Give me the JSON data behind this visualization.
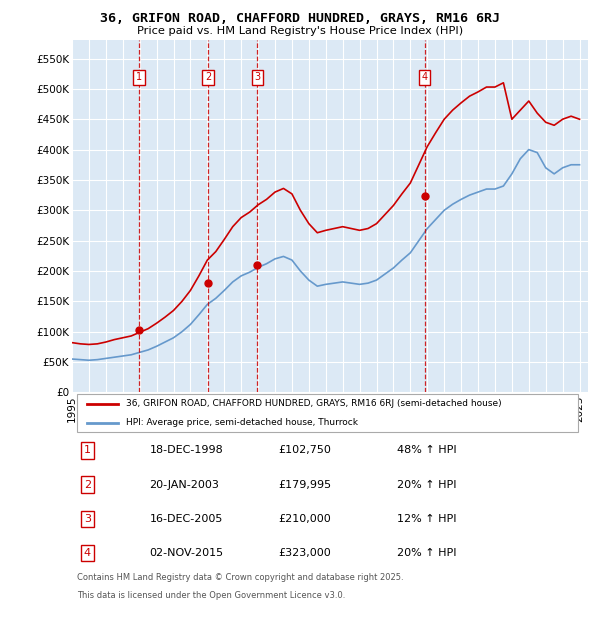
{
  "title": "36, GRIFON ROAD, CHAFFORD HUNDRED, GRAYS, RM16 6RJ",
  "subtitle": "Price paid vs. HM Land Registry's House Price Index (HPI)",
  "ylim": [
    0,
    580000
  ],
  "xlim_start": 1995.0,
  "xlim_end": 2025.5,
  "yticks": [
    0,
    50000,
    100000,
    150000,
    200000,
    250000,
    300000,
    350000,
    400000,
    450000,
    500000,
    550000
  ],
  "ytick_labels": [
    "£0",
    "£50K",
    "£100K",
    "£150K",
    "£200K",
    "£250K",
    "£300K",
    "£350K",
    "£400K",
    "£450K",
    "£500K",
    "£550K"
  ],
  "xticks": [
    1995,
    1996,
    1997,
    1998,
    1999,
    2000,
    2001,
    2002,
    2003,
    2004,
    2005,
    2006,
    2007,
    2008,
    2009,
    2010,
    2011,
    2012,
    2013,
    2014,
    2015,
    2016,
    2017,
    2018,
    2019,
    2020,
    2021,
    2022,
    2023,
    2024,
    2025
  ],
  "bg_color": "#dce9f5",
  "grid_color": "#ffffff",
  "red_color": "#cc0000",
  "blue_color": "#6699cc",
  "transactions": [
    {
      "num": 1,
      "date": "18-DEC-1998",
      "price": 102750,
      "pct": "48% ↑ HPI",
      "year": 1998.96
    },
    {
      "num": 2,
      "date": "20-JAN-2003",
      "price": 179995,
      "pct": "20% ↑ HPI",
      "year": 2003.05
    },
    {
      "num": 3,
      "date": "16-DEC-2005",
      "price": 210000,
      "pct": "12% ↑ HPI",
      "year": 2005.96
    },
    {
      "num": 4,
      "date": "02-NOV-2015",
      "price": 323000,
      "pct": "20% ↑ HPI",
      "year": 2015.84
    }
  ],
  "legend_label_red": "36, GRIFON ROAD, CHAFFORD HUNDRED, GRAYS, RM16 6RJ (semi-detached house)",
  "legend_label_blue": "HPI: Average price, semi-detached house, Thurrock",
  "footer_line1": "Contains HM Land Registry data © Crown copyright and database right 2025.",
  "footer_line2": "This data is licensed under the Open Government Licence v3.0.",
  "table_rows": [
    [
      "1",
      "18-DEC-1998",
      "£102,750",
      "48% ↑ HPI"
    ],
    [
      "2",
      "20-JAN-2003",
      "£179,995",
      "20% ↑ HPI"
    ],
    [
      "3",
      "16-DEC-2005",
      "£210,000",
      "12% ↑ HPI"
    ],
    [
      "4",
      "02-NOV-2015",
      "£323,000",
      "20% ↑ HPI"
    ]
  ],
  "hpi_blue_x": [
    1995.0,
    1995.5,
    1996.0,
    1996.5,
    1997.0,
    1997.5,
    1998.0,
    1998.5,
    1999.0,
    1999.5,
    2000.0,
    2000.5,
    2001.0,
    2001.5,
    2002.0,
    2002.5,
    2003.0,
    2003.5,
    2004.0,
    2004.5,
    2005.0,
    2005.5,
    2006.0,
    2006.5,
    2007.0,
    2007.5,
    2008.0,
    2008.5,
    2009.0,
    2009.5,
    2010.0,
    2010.5,
    2011.0,
    2011.5,
    2012.0,
    2012.5,
    2013.0,
    2013.5,
    2014.0,
    2014.5,
    2015.0,
    2015.5,
    2016.0,
    2016.5,
    2017.0,
    2017.5,
    2018.0,
    2018.5,
    2019.0,
    2019.5,
    2020.0,
    2020.5,
    2021.0,
    2021.5,
    2022.0,
    2022.5,
    2023.0,
    2023.5,
    2024.0,
    2024.5,
    2025.0
  ],
  "hpi_blue_y": [
    55000,
    54000,
    53000,
    54000,
    56000,
    58000,
    60000,
    62000,
    66000,
    70000,
    76000,
    83000,
    90000,
    100000,
    112000,
    128000,
    145000,
    155000,
    168000,
    182000,
    192000,
    198000,
    206000,
    212000,
    220000,
    224000,
    218000,
    200000,
    185000,
    175000,
    178000,
    180000,
    182000,
    180000,
    178000,
    180000,
    185000,
    195000,
    205000,
    218000,
    230000,
    250000,
    270000,
    285000,
    300000,
    310000,
    318000,
    325000,
    330000,
    335000,
    335000,
    340000,
    360000,
    385000,
    400000,
    395000,
    370000,
    360000,
    370000,
    375000,
    375000
  ],
  "hpi_red_x": [
    1995.0,
    1995.5,
    1996.0,
    1996.5,
    1997.0,
    1997.5,
    1998.0,
    1998.5,
    1999.0,
    1999.5,
    2000.0,
    2000.5,
    2001.0,
    2001.5,
    2002.0,
    2002.5,
    2003.0,
    2003.5,
    2004.0,
    2004.5,
    2005.0,
    2005.5,
    2006.0,
    2006.5,
    2007.0,
    2007.5,
    2008.0,
    2008.5,
    2009.0,
    2009.5,
    2010.0,
    2010.5,
    2011.0,
    2011.5,
    2012.0,
    2012.5,
    2013.0,
    2013.5,
    2014.0,
    2014.5,
    2015.0,
    2015.5,
    2016.0,
    2016.5,
    2017.0,
    2017.5,
    2018.0,
    2018.5,
    2019.0,
    2019.5,
    2020.0,
    2020.5,
    2021.0,
    2021.5,
    2022.0,
    2022.5,
    2023.0,
    2023.5,
    2024.0,
    2024.5,
    2025.0
  ],
  "hpi_red_y": [
    82000,
    80000,
    79000,
    80000,
    83000,
    87000,
    90000,
    93000,
    99000,
    105000,
    114000,
    124000,
    135000,
    150000,
    168000,
    192000,
    218000,
    232000,
    252000,
    273000,
    288000,
    297000,
    309000,
    318000,
    330000,
    336000,
    327000,
    300000,
    278000,
    263000,
    267000,
    270000,
    273000,
    270000,
    267000,
    270000,
    278000,
    293000,
    308000,
    327000,
    345000,
    375000,
    405000,
    428000,
    450000,
    465000,
    477000,
    488000,
    495000,
    503000,
    503000,
    510000,
    450000,
    465000,
    480000,
    460000,
    445000,
    440000,
    450000,
    455000,
    450000
  ]
}
